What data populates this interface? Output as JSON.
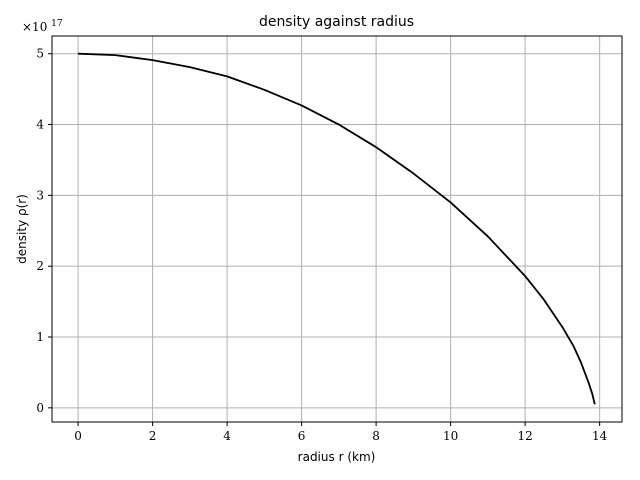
{
  "chart_data": {
    "type": "line",
    "title": "density against radius",
    "xlabel": "radius r (km)",
    "ylabel": "density ρ(r)",
    "y_scale_factor_label": "×10",
    "y_scale_factor_exponent": "17",
    "xlim": [
      -0.7,
      14.6
    ],
    "ylim": [
      -0.2,
      5.25
    ],
    "x_ticks": [
      0,
      2,
      4,
      6,
      8,
      10,
      12,
      14
    ],
    "y_ticks": [
      0,
      1,
      2,
      3,
      4,
      5
    ],
    "grid": true,
    "series": [
      {
        "color": "#000000",
        "x": [
          0,
          1,
          2,
          3,
          4,
          5,
          6,
          7,
          8,
          9,
          10,
          11,
          12,
          12.5,
          13,
          13.3,
          13.5,
          13.7,
          13.8,
          13.87
        ],
        "y": [
          5.0,
          4.98,
          4.91,
          4.81,
          4.68,
          4.49,
          4.27,
          4.0,
          3.68,
          3.31,
          2.9,
          2.42,
          1.86,
          1.53,
          1.14,
          0.87,
          0.64,
          0.36,
          0.2,
          0.05
        ]
      }
    ]
  },
  "colors": {
    "grid": "#b0b0b0",
    "line": "#000000",
    "background": "#ffffff"
  }
}
